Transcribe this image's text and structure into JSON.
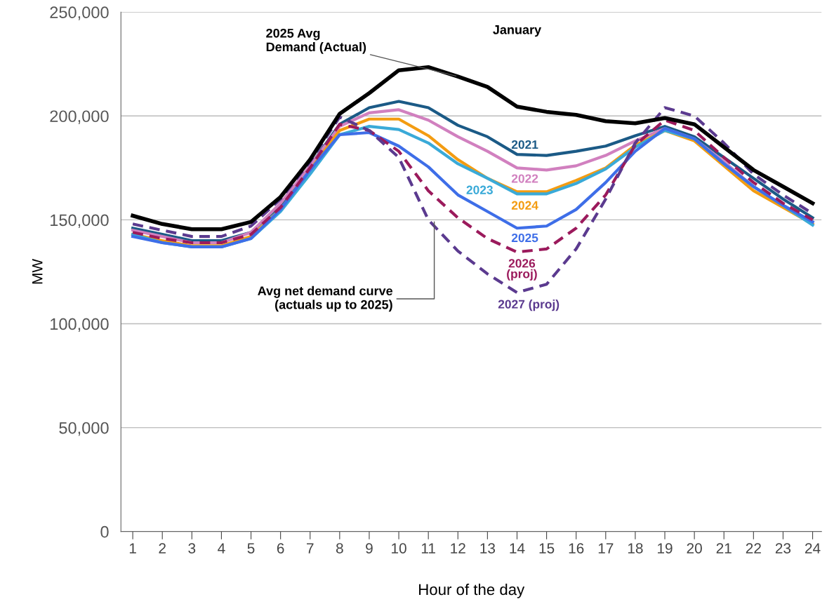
{
  "chart_data": {
    "type": "line",
    "title": "January",
    "xlabel": "Hour of the day",
    "ylabel": "MW",
    "x": [
      1,
      2,
      3,
      4,
      5,
      6,
      7,
      8,
      9,
      10,
      11,
      12,
      13,
      14,
      15,
      16,
      17,
      18,
      19,
      20,
      21,
      22,
      23,
      24
    ],
    "xlim": [
      0.6,
      24.3
    ],
    "xticks": [
      1,
      2,
      3,
      4,
      5,
      6,
      7,
      8,
      9,
      10,
      11,
      12,
      13,
      14,
      15,
      16,
      17,
      18,
      19,
      20,
      21,
      22,
      23,
      24
    ],
    "ylim": [
      0,
      250000
    ],
    "yticks": [
      {
        "value": 0,
        "label": "0"
      },
      {
        "value": 50000,
        "label": "50,000"
      },
      {
        "value": 100000,
        "label": "100,000"
      },
      {
        "value": 150000,
        "label": "150,000"
      },
      {
        "value": 200000,
        "label": "200,000"
      },
      {
        "value": 250000,
        "label": "250,000"
      }
    ],
    "grid": "y",
    "legend": false,
    "marker": "none",
    "series": [
      {
        "name": "2021",
        "color": "#1b5a86",
        "line_style": "solid",
        "values": [
          146000,
          143000,
          140000,
          140000,
          144000,
          157000,
          176000,
          196000,
          204000,
          207000,
          204000,
          195500,
          190000,
          181500,
          181000,
          183000,
          185500,
          190500,
          195000,
          190000,
          180000,
          170000,
          160000,
          151000
        ]
      },
      {
        "name": "2022",
        "color": "#d180bf",
        "line_style": "solid",
        "values": [
          145000,
          142000,
          139000,
          139000,
          144000,
          158000,
          176000,
          195000,
          201500,
          203000,
          198000,
          190000,
          183000,
          175000,
          174000,
          176000,
          181000,
          188000,
          194000,
          189000,
          178000,
          166000,
          157000,
          149000
        ]
      },
      {
        "name": "2024",
        "color": "#f39c12",
        "line_style": "solid",
        "values": [
          143000,
          140000,
          137500,
          137500,
          142000,
          155000,
          174000,
          193000,
          198500,
          198500,
          190500,
          179000,
          170000,
          163500,
          163500,
          169000,
          175000,
          186000,
          193000,
          188000,
          176000,
          164000,
          156000,
          148000
        ]
      },
      {
        "name": "2023",
        "color": "#3aaad8",
        "line_style": "solid",
        "values": [
          143000,
          139000,
          137000,
          137000,
          141000,
          154000,
          172000,
          191000,
          195000,
          193500,
          187000,
          177000,
          170000,
          162500,
          162500,
          167500,
          174500,
          185000,
          193000,
          189000,
          177000,
          166000,
          157000,
          147500
        ]
      },
      {
        "name": "2025",
        "color": "#3e6ee8",
        "line_style": "solid",
        "values": [
          142000,
          139000,
          137000,
          137000,
          141000,
          155000,
          174000,
          191000,
          192000,
          185500,
          175500,
          162000,
          154000,
          146000,
          147000,
          155000,
          168000,
          183000,
          194000,
          189000,
          177000,
          166000,
          157000,
          149000
        ]
      },
      {
        "name": "2026\n(proj)",
        "color": "#9b1a5c",
        "line_style": "dashed",
        "values": [
          144000,
          141000,
          139000,
          139000,
          143000,
          156000,
          175000,
          196000,
          193000,
          183000,
          164000,
          151000,
          141000,
          134500,
          136000,
          146000,
          162000,
          186000,
          198000,
          193000,
          180000,
          168000,
          158000,
          150000
        ]
      },
      {
        "name": "2027 (proj)",
        "color": "#5b3a8f",
        "line_style": "dashed",
        "values": [
          148000,
          145000,
          142000,
          142000,
          147000,
          160000,
          178000,
          199500,
          193000,
          180000,
          150000,
          135000,
          124000,
          115000,
          119000,
          136000,
          160000,
          187000,
          204000,
          200000,
          187000,
          172000,
          162000,
          153000
        ]
      },
      {
        "color": "#000000",
        "line_style": "solid",
        "values": [
          152000,
          148000,
          145500,
          145500,
          149000,
          161000,
          179000,
          201000,
          211000,
          222000,
          223500,
          219000,
          214000,
          204500,
          202000,
          200500,
          197500,
          196500,
          199000,
          196000,
          185000,
          174000,
          166000,
          158000
        ]
      }
    ],
    "annotations": [
      {
        "text": "2025 Avg\nDemand (Actual)",
        "x": 12,
        "y": 219000
      },
      {
        "text": "Avg net demand curve\n(actuals up to 2025)",
        "x": 11.2,
        "y": 150000
      }
    ]
  }
}
